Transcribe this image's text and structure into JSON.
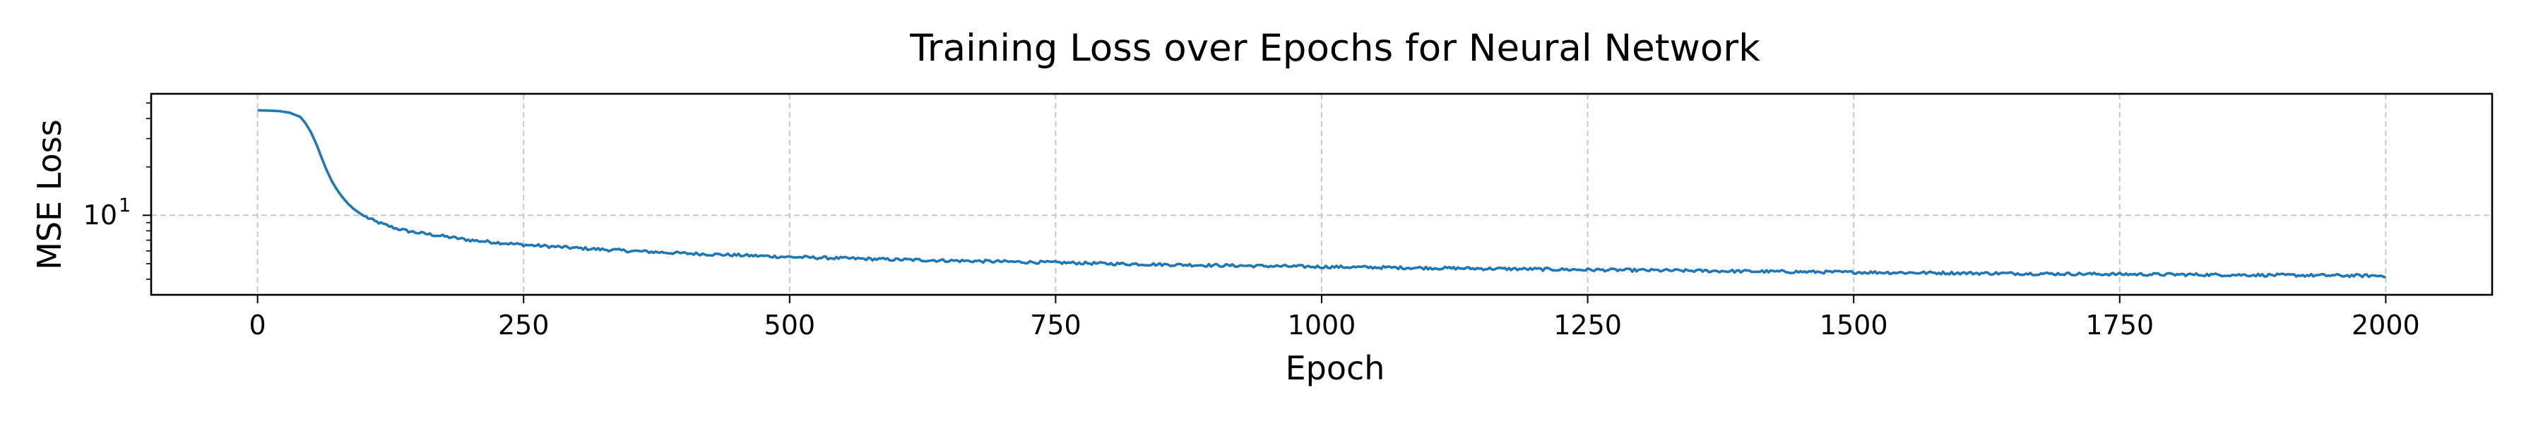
{
  "chart_data": {
    "type": "line",
    "title": "Training Loss over Epochs for Neural Network",
    "xlabel": "Epoch",
    "ylabel": "MSE Loss",
    "xlim": [
      -100,
      2100
    ],
    "ylim": [
      3.2,
      57
    ],
    "yscale": "log",
    "grid": true,
    "x_ticks": [
      0,
      250,
      500,
      750,
      1000,
      1250,
      1500,
      1750,
      2000
    ],
    "x_tick_labels": [
      "0",
      "250",
      "500",
      "750",
      "1000",
      "1250",
      "1500",
      "1750",
      "2000"
    ],
    "y_ticks": [
      10
    ],
    "y_tick_labels": [
      "10"
    ],
    "y_tick_label_exponent": "1",
    "series": [
      {
        "color": "#1f77b4",
        "x": [
          0,
          10,
          20,
          30,
          40,
          45,
          50,
          55,
          60,
          65,
          70,
          75,
          80,
          85,
          90,
          95,
          100,
          110,
          120,
          130,
          140,
          150,
          175,
          200,
          250,
          300,
          350,
          400,
          500,
          600,
          700,
          750,
          800,
          900,
          1000,
          1100,
          1200,
          1250,
          1300,
          1400,
          1500,
          1600,
          1700,
          1750,
          1800,
          1900,
          2000
        ],
        "y": [
          45,
          44.8,
          44.5,
          43.5,
          41,
          37.5,
          33,
          28,
          23,
          19,
          16.2,
          14.3,
          12.9,
          11.8,
          11,
          10.4,
          9.9,
          9.2,
          8.7,
          8.3,
          8.0,
          7.8,
          7.4,
          7.0,
          6.55,
          6.25,
          6.0,
          5.8,
          5.5,
          5.3,
          5.15,
          5.08,
          5.0,
          4.88,
          4.78,
          4.7,
          4.62,
          4.58,
          4.55,
          4.48,
          4.42,
          4.37,
          4.32,
          4.3,
          4.28,
          4.24,
          4.2
        ]
      }
    ]
  }
}
